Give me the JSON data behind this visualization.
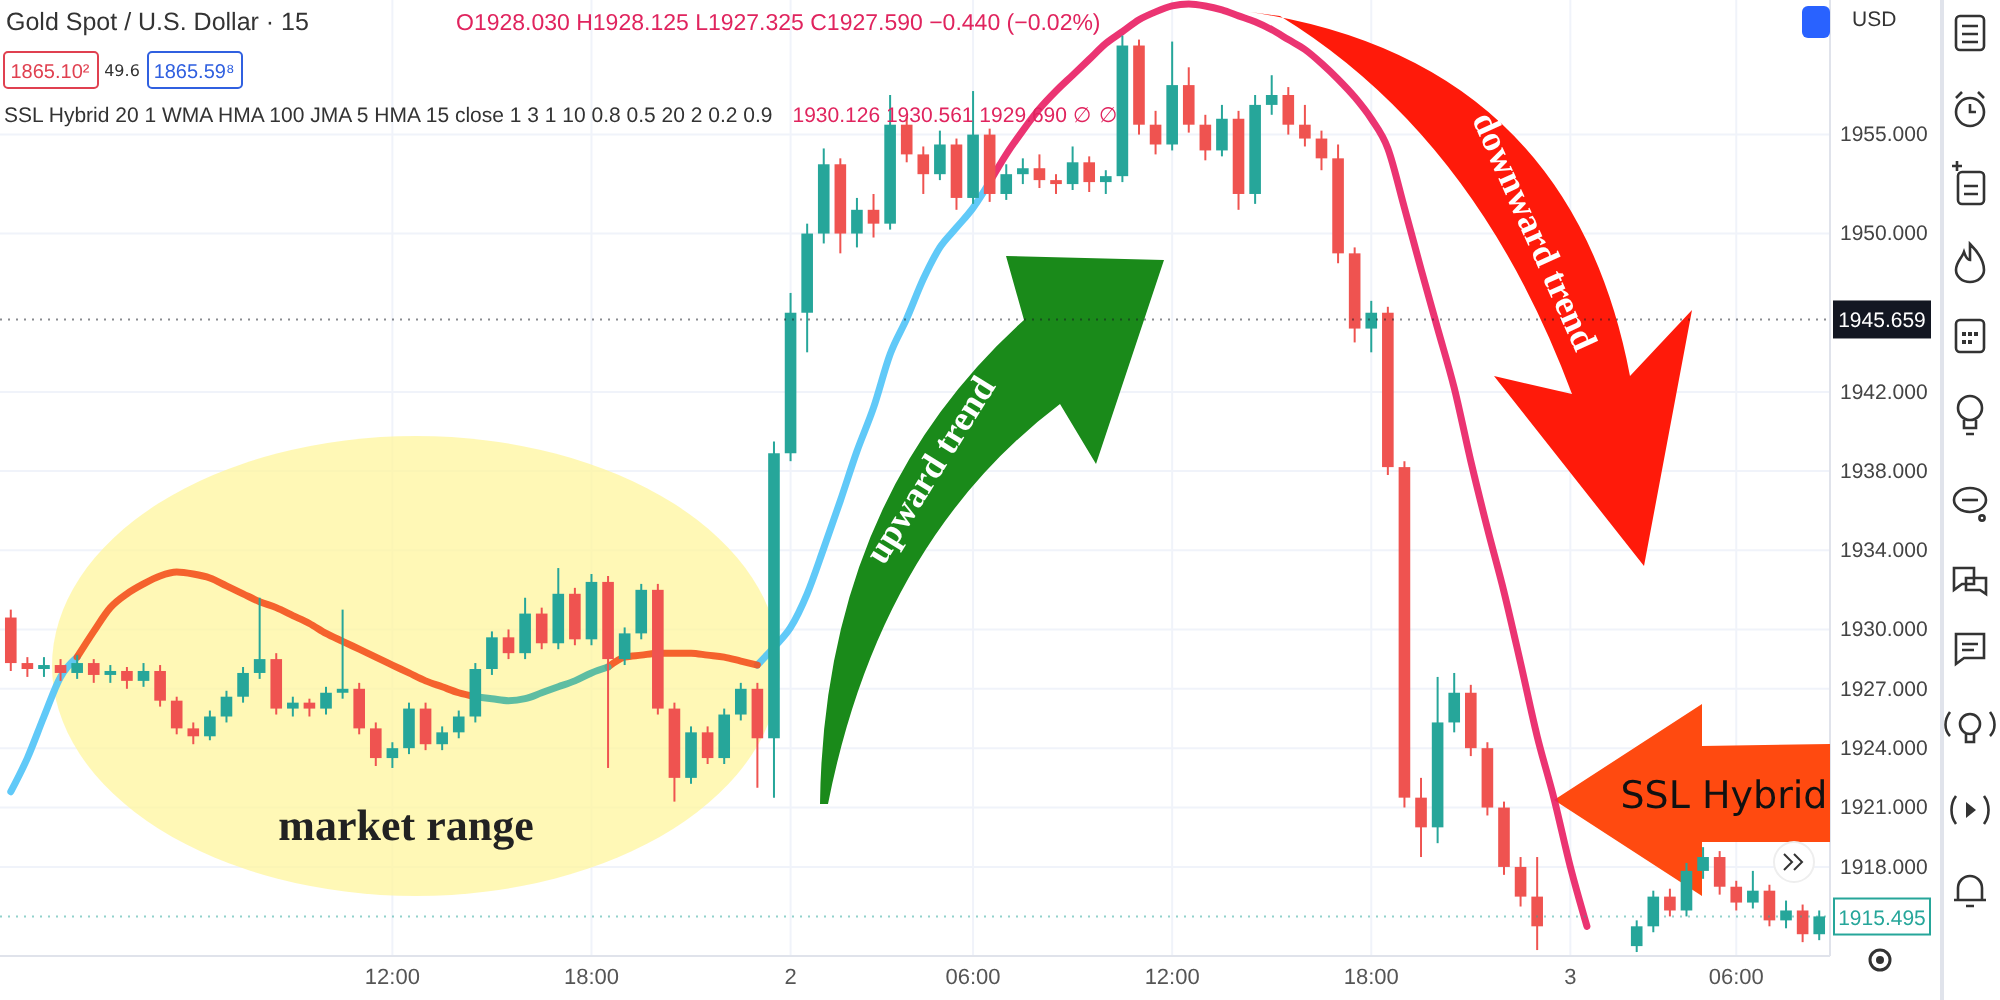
{
  "chart_data": {
    "type": "candlestick",
    "title": "Gold Spot / U.S. Dollar · 15",
    "annotations": [
      "O1928.030 H1928.125 L1927.325 C1927.590 −0.440 (−0.02%)",
      "1865.10²",
      "49.6",
      "1865.59⁸",
      "SSL Hybrid 20 1 WMA HMA 100 JMA 5 HMA 15 close 1 3 1 10 0.8 0.5 20 2 0.2 0.9",
      "1930.126 1930.561 1929.690 ∅ ∅",
      "upward trend",
      "downward trend",
      "SSL Hybrid",
      "market range",
      "USD"
    ],
    "categories": [
      null,
      null,
      null,
      null,
      null,
      null,
      null,
      null,
      null,
      null,
      null,
      null,
      null,
      null,
      null,
      null,
      null,
      null,
      null,
      null,
      null,
      null,
      null,
      "12:00",
      null,
      null,
      null,
      null,
      null,
      null,
      null,
      null,
      null,
      null,
      null,
      "18:00",
      null,
      null,
      null,
      null,
      null,
      null,
      null,
      null,
      null,
      null,
      null,
      "2",
      null,
      null,
      null,
      null,
      null,
      null,
      null,
      null,
      null,
      null,
      "06:00",
      null,
      null,
      null,
      null,
      null,
      null,
      null,
      null,
      null,
      null,
      null,
      "12:00",
      null,
      null,
      null,
      null,
      null,
      null,
      null,
      null,
      null,
      null,
      null,
      "18:00",
      null,
      null,
      null,
      null,
      null,
      null,
      null,
      null,
      null,
      null,
      null,
      "3",
      null,
      null,
      null,
      null,
      null,
      null,
      null,
      null,
      null,
      "06:00",
      null,
      null,
      null,
      null,
      null
    ],
    "ohlc": [
      [
        1930.6,
        1931.0,
        1927.9,
        1928.3
      ],
      [
        1928.3,
        1928.6,
        1927.6,
        1928.0
      ],
      [
        1928.0,
        1928.6,
        1927.6,
        1928.2
      ],
      [
        1928.2,
        1928.5,
        1927.4,
        1927.8
      ],
      [
        1927.8,
        1928.7,
        1927.5,
        1928.3
      ],
      [
        1928.3,
        1928.5,
        1927.3,
        1927.7
      ],
      [
        1927.7,
        1928.2,
        1927.3,
        1927.9
      ],
      [
        1927.9,
        1928.1,
        1927.0,
        1927.4
      ],
      [
        1927.4,
        1928.3,
        1927.1,
        1927.9
      ],
      [
        1927.9,
        1928.2,
        1926.1,
        1926.4
      ],
      [
        1926.4,
        1926.6,
        1924.7,
        1925.0
      ],
      [
        1925.0,
        1925.3,
        1924.2,
        1924.6
      ],
      [
        1924.6,
        1925.9,
        1924.4,
        1925.6
      ],
      [
        1925.6,
        1926.9,
        1925.3,
        1926.6
      ],
      [
        1926.6,
        1928.1,
        1926.3,
        1927.8
      ],
      [
        1927.8,
        1931.6,
        1927.5,
        1928.5
      ],
      [
        1928.5,
        1928.8,
        1925.7,
        1926.0
      ],
      [
        1926.0,
        1926.6,
        1925.6,
        1926.3
      ],
      [
        1926.3,
        1926.5,
        1925.6,
        1926.0
      ],
      [
        1926.0,
        1927.1,
        1925.7,
        1926.8
      ],
      [
        1926.8,
        1931.0,
        1926.5,
        1927.0
      ],
      [
        1927.0,
        1927.3,
        1924.7,
        1925.0
      ],
      [
        1925.0,
        1925.3,
        1923.1,
        1923.5
      ],
      [
        1923.5,
        1924.3,
        1923.0,
        1924.0
      ],
      [
        1924.0,
        1926.3,
        1923.7,
        1926.0
      ],
      [
        1926.0,
        1926.3,
        1923.9,
        1924.2
      ],
      [
        1924.2,
        1925.1,
        1923.9,
        1924.8
      ],
      [
        1924.8,
        1925.9,
        1924.5,
        1925.6
      ],
      [
        1925.6,
        1928.3,
        1925.3,
        1928.0
      ],
      [
        1928.0,
        1929.9,
        1927.7,
        1929.6
      ],
      [
        1929.6,
        1930.0,
        1928.5,
        1928.8
      ],
      [
        1928.8,
        1931.6,
        1928.5,
        1930.8
      ],
      [
        1930.8,
        1931.1,
        1929.0,
        1929.3
      ],
      [
        1929.3,
        1933.1,
        1929.0,
        1931.8
      ],
      [
        1931.8,
        1932.1,
        1929.2,
        1929.5
      ],
      [
        1929.5,
        1932.8,
        1929.2,
        1932.4
      ],
      [
        1932.4,
        1932.7,
        1923.0,
        1928.5
      ],
      [
        1928.5,
        1930.1,
        1928.2,
        1929.8
      ],
      [
        1929.8,
        1932.3,
        1929.5,
        1932.0
      ],
      [
        1932.0,
        1932.3,
        1925.7,
        1926.0
      ],
      [
        1926.0,
        1926.3,
        1921.3,
        1922.5
      ],
      [
        1922.5,
        1925.1,
        1922.2,
        1924.8
      ],
      [
        1924.8,
        1925.1,
        1923.2,
        1923.5
      ],
      [
        1923.5,
        1926.0,
        1923.2,
        1925.7
      ],
      [
        1925.7,
        1927.3,
        1925.4,
        1927.0
      ],
      [
        1927.0,
        1927.3,
        1922.0,
        1924.5
      ],
      [
        1924.5,
        1939.5,
        1921.5,
        1938.9
      ],
      [
        1938.9,
        1947.0,
        1938.5,
        1946.0
      ],
      [
        1946.0,
        1950.5,
        1944.0,
        1950.0
      ],
      [
        1950.0,
        1954.3,
        1949.5,
        1953.5
      ],
      [
        1953.5,
        1953.8,
        1949.0,
        1950.0
      ],
      [
        1950.0,
        1951.8,
        1949.3,
        1951.2
      ],
      [
        1951.2,
        1952.0,
        1949.8,
        1950.5
      ],
      [
        1950.5,
        1957.0,
        1950.2,
        1955.5
      ],
      [
        1955.5,
        1955.9,
        1953.6,
        1954.0
      ],
      [
        1954.0,
        1954.4,
        1952.0,
        1953.0
      ],
      [
        1953.0,
        1955.2,
        1952.7,
        1954.5
      ],
      [
        1954.5,
        1954.8,
        1951.2,
        1951.8
      ],
      [
        1951.8,
        1957.2,
        1951.5,
        1955.0
      ],
      [
        1955.0,
        1955.3,
        1951.6,
        1952.0
      ],
      [
        1952.0,
        1953.5,
        1951.7,
        1953.0
      ],
      [
        1953.0,
        1953.8,
        1952.5,
        1953.3
      ],
      [
        1953.3,
        1954.0,
        1952.3,
        1952.7
      ],
      [
        1952.7,
        1953.0,
        1952.0,
        1952.5
      ],
      [
        1952.5,
        1954.4,
        1952.2,
        1953.6
      ],
      [
        1953.6,
        1953.9,
        1952.1,
        1952.6
      ],
      [
        1952.6,
        1953.2,
        1952.0,
        1952.9
      ],
      [
        1952.9,
        1960.0,
        1952.6,
        1959.5
      ],
      [
        1959.5,
        1959.8,
        1955.0,
        1955.5
      ],
      [
        1955.5,
        1956.2,
        1954.0,
        1954.5
      ],
      [
        1954.5,
        1959.7,
        1954.2,
        1957.5
      ],
      [
        1957.5,
        1958.4,
        1955.1,
        1955.5
      ],
      [
        1955.5,
        1956.0,
        1953.7,
        1954.2
      ],
      [
        1954.2,
        1956.5,
        1953.9,
        1955.8
      ],
      [
        1955.8,
        1956.2,
        1951.2,
        1952.0
      ],
      [
        1952.0,
        1957.0,
        1951.5,
        1956.5
      ],
      [
        1956.5,
        1958.0,
        1956.0,
        1957.0
      ],
      [
        1957.0,
        1957.4,
        1955.0,
        1955.5
      ],
      [
        1955.5,
        1956.5,
        1954.4,
        1954.8
      ],
      [
        1954.8,
        1955.2,
        1953.2,
        1953.8
      ],
      [
        1953.8,
        1954.5,
        1948.5,
        1949.0
      ],
      [
        1949.0,
        1949.3,
        1944.5,
        1945.2
      ],
      [
        1945.2,
        1946.6,
        1944.0,
        1946.0
      ],
      [
        1946.0,
        1946.3,
        1937.8,
        1938.2
      ],
      [
        1938.2,
        1938.5,
        1921.0,
        1921.5
      ],
      [
        1921.5,
        1922.5,
        1918.5,
        1920.0
      ],
      [
        1920.0,
        1927.6,
        1919.2,
        1925.3
      ],
      [
        1925.3,
        1927.8,
        1924.8,
        1926.8
      ],
      [
        1926.8,
        1927.2,
        1923.6,
        1924.0
      ],
      [
        1924.0,
        1924.3,
        1920.6,
        1921.0
      ],
      [
        1921.0,
        1921.3,
        1917.6,
        1918.0
      ],
      [
        1918.0,
        1918.5,
        1916.0,
        1916.5
      ],
      [
        1916.5,
        1918.5,
        1913.8,
        1915.0
      ],
      null,
      null,
      null,
      null,
      null,
      [
        1914.0,
        1915.3,
        1913.7,
        1915.0
      ],
      [
        1915.0,
        1916.8,
        1914.7,
        1916.5
      ],
      [
        1916.5,
        1916.9,
        1915.5,
        1915.8
      ],
      [
        1915.8,
        1918.2,
        1915.5,
        1917.8
      ],
      [
        1917.8,
        1919.0,
        1917.4,
        1918.5
      ],
      [
        1918.5,
        1918.8,
        1916.6,
        1917.0
      ],
      [
        1917.0,
        1917.3,
        1915.8,
        1916.2
      ],
      [
        1916.2,
        1917.8,
        1915.9,
        1916.8
      ],
      [
        1916.8,
        1917.1,
        1915.0,
        1915.3
      ],
      [
        1915.3,
        1916.3,
        1914.9,
        1915.8
      ],
      [
        1915.8,
        1916.1,
        1914.2,
        1914.6
      ],
      [
        1914.6,
        1915.8,
        1914.3,
        1915.5
      ]
    ],
    "series": [
      {
        "type": "line",
        "color": "#4fc3f7",
        "values": [
          1921.8,
          1923.5,
          1925.6,
          1927.6,
          1928.6,
          null,
          null,
          null,
          null,
          null,
          null,
          null,
          null,
          null,
          null,
          null,
          null,
          null,
          null,
          null,
          null,
          null,
          null,
          null,
          null,
          null,
          null,
          null,
          null,
          null,
          null,
          null,
          null,
          null,
          null,
          null,
          null,
          null,
          null,
          null,
          null,
          null,
          null,
          null,
          null,
          1928.2,
          1929.1,
          1930.1,
          1931.8,
          1934.1,
          1936.5,
          1939.0,
          1941.2,
          1943.9,
          1945.7,
          1947.7,
          1949.3,
          1950.3,
          1951.3,
          1952.6,
          null,
          null,
          null,
          null,
          null,
          null,
          null,
          null,
          null,
          null,
          null,
          null,
          null,
          null,
          null,
          null,
          null,
          null,
          null,
          null,
          null,
          null,
          null,
          null,
          null,
          null,
          null,
          null,
          null,
          null,
          null,
          null,
          null,
          null,
          null,
          null,
          null,
          null,
          null,
          null,
          null,
          null,
          null,
          null,
          null,
          null,
          null,
          null,
          null,
          null
        ]
      },
      {
        "type": "line",
        "color": "#f4511e",
        "values": [
          null,
          null,
          null,
          null,
          1928.6,
          1929.9,
          1931.1,
          1931.8,
          1932.3,
          1932.7,
          1932.9,
          1932.8,
          1932.6,
          1932.2,
          1931.8,
          1931.4,
          1931.1,
          1930.7,
          1930.3,
          1929.8,
          1929.4,
          1929.0,
          1928.6,
          1928.2,
          1927.8,
          1927.4,
          1927.1,
          1926.8,
          1926.6,
          null,
          null,
          null,
          null,
          null,
          null,
          null,
          1928.1,
          1928.6,
          1928.7,
          1928.8,
          1928.8,
          1928.8,
          1928.7,
          1928.6,
          1928.4,
          1928.2,
          null,
          null,
          null,
          null,
          null,
          null,
          null,
          null,
          null,
          null,
          null,
          null,
          null,
          null,
          null,
          null,
          null,
          null,
          null,
          null,
          null,
          null,
          null,
          null,
          null,
          null,
          null,
          null,
          null,
          null,
          null,
          null,
          null,
          null,
          null,
          null,
          null,
          null,
          null,
          null,
          null,
          null,
          null,
          null,
          null,
          null,
          null,
          null,
          null,
          null,
          null,
          null,
          null,
          null,
          null,
          null,
          null,
          null,
          null,
          null,
          null,
          null,
          null,
          null
        ]
      },
      {
        "type": "line",
        "color": "#4db6a0",
        "values": [
          null,
          null,
          null,
          null,
          null,
          null,
          null,
          null,
          null,
          null,
          null,
          null,
          null,
          null,
          null,
          null,
          null,
          null,
          null,
          null,
          null,
          null,
          null,
          null,
          null,
          null,
          null,
          null,
          1926.6,
          1926.5,
          1926.4,
          1926.5,
          1926.8,
          1927.1,
          1927.4,
          1927.8,
          1928.1,
          null,
          null,
          null,
          null,
          null,
          null,
          null,
          null,
          null,
          null,
          null,
          null,
          null,
          null,
          null,
          null,
          null,
          null,
          null,
          null,
          null,
          null,
          null,
          null,
          null,
          null,
          null,
          null,
          null,
          null,
          null,
          null,
          null,
          null,
          null,
          null,
          null,
          null,
          null,
          null,
          null,
          null,
          null,
          null,
          null,
          null,
          null,
          null,
          null,
          null,
          null,
          null,
          null,
          null,
          null,
          null,
          null,
          null,
          null,
          null,
          null,
          null,
          null,
          null,
          null,
          null,
          null,
          null,
          null,
          null,
          null,
          null,
          null
        ]
      },
      {
        "type": "line",
        "color": "#e91e63",
        "values": [
          null,
          null,
          null,
          null,
          null,
          null,
          null,
          null,
          null,
          null,
          null,
          null,
          null,
          null,
          null,
          null,
          null,
          null,
          null,
          null,
          null,
          null,
          null,
          null,
          null,
          null,
          null,
          null,
          null,
          null,
          null,
          null,
          null,
          null,
          null,
          null,
          null,
          null,
          null,
          null,
          null,
          null,
          null,
          null,
          null,
          null,
          null,
          null,
          null,
          null,
          null,
          null,
          null,
          null,
          null,
          null,
          null,
          null,
          null,
          1952.6,
          1954.0,
          1955.2,
          1956.3,
          1957.2,
          1958.0,
          1958.8,
          1959.6,
          1960.2,
          1960.8,
          1961.2,
          1961.5,
          1961.6,
          1961.5,
          1961.3,
          1961.0,
          1960.7,
          1960.3,
          1959.8,
          1959.3,
          1958.6,
          1957.8,
          1956.9,
          1955.8,
          1954.3,
          1951.3,
          1948.2,
          1945.2,
          1942.2,
          1938.5,
          1935.1,
          1931.9,
          1928.3,
          1924.6,
          1921.5,
          1918.0,
          1915.0,
          null,
          null,
          null,
          null,
          null,
          null,
          null,
          null,
          null,
          null,
          null,
          null,
          null,
          null
        ]
      }
    ],
    "ylim": [
      1913.5,
      1961.8
    ],
    "yticks": [
      {
        "value": 1918,
        "label": "1918.000"
      },
      {
        "value": 1921,
        "label": "1921.000"
      },
      {
        "value": 1924,
        "label": "1924.000"
      },
      {
        "value": 1927,
        "label": "1927.000"
      },
      {
        "value": 1930,
        "label": "1930.000"
      },
      {
        "value": 1934,
        "label": "1934.000"
      },
      {
        "value": 1938,
        "label": "1938.000"
      },
      {
        "value": 1942,
        "label": "1942.000"
      },
      {
        "value": 1950,
        "label": "1950.000"
      },
      {
        "value": 1955,
        "label": "1955.000"
      }
    ],
    "ref_lines": [
      {
        "axis": "y",
        "value": 1945.659,
        "label": "1945.659",
        "color": "#131722"
      },
      {
        "axis": "y",
        "value": 1915.495,
        "label": "1915.495",
        "color": "#26a69a"
      }
    ],
    "grid": true
  }
}
